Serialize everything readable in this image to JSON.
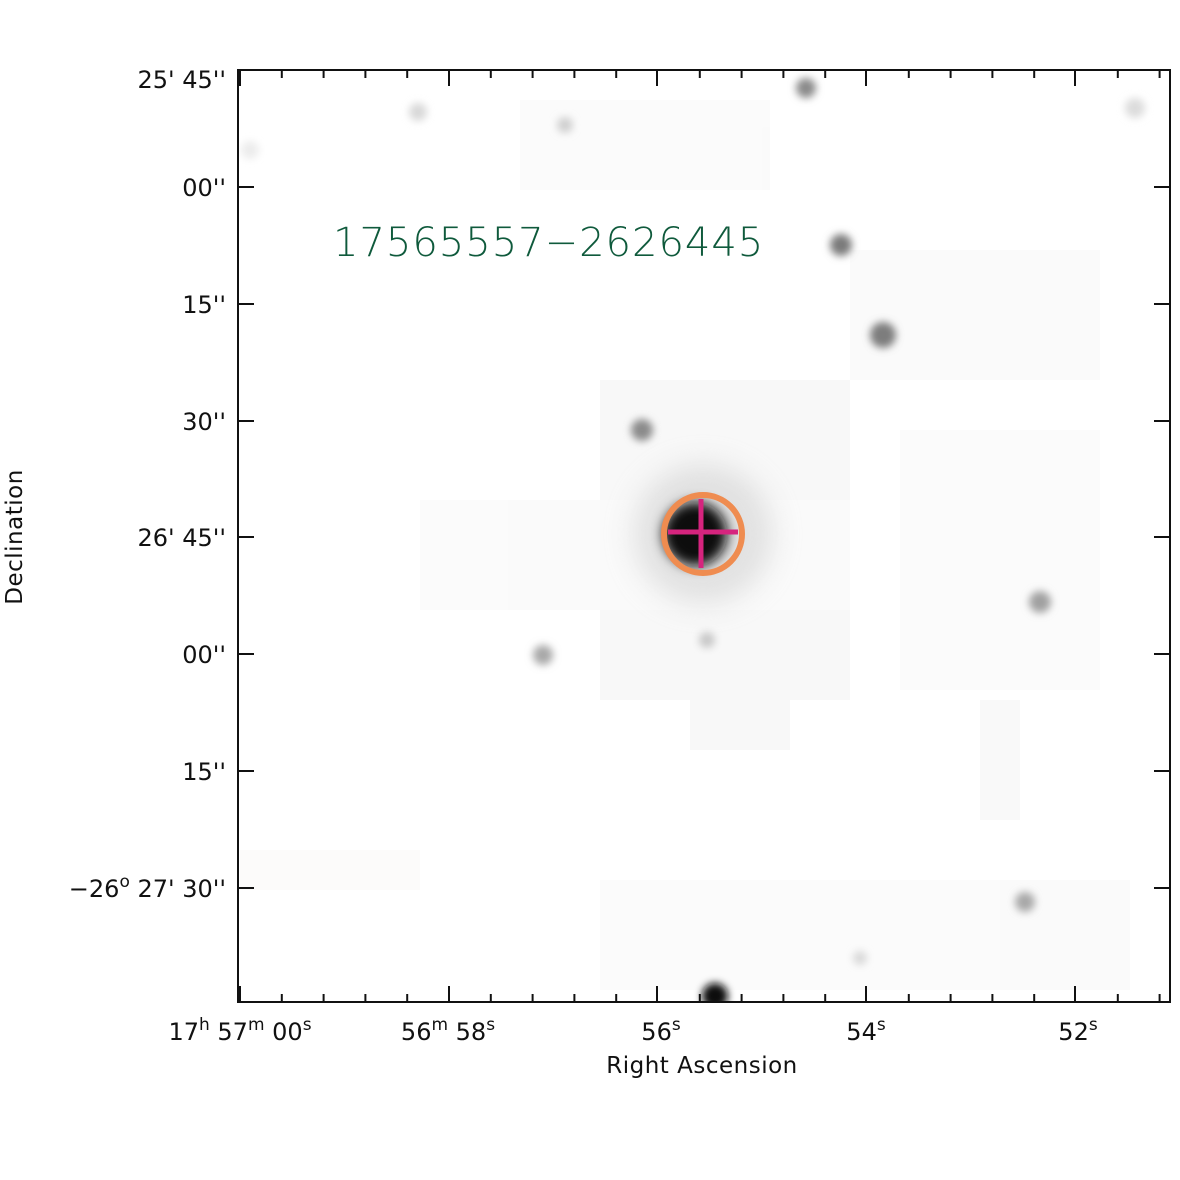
{
  "image": {
    "object_label": "17565557−2626445",
    "object_label_color": "#0f5a3c",
    "marker_circle_color": "#ef8c50",
    "marker_cross_color": "#d6247e",
    "axis_color": "#111111"
  },
  "axes": {
    "xlabel": "Right Ascension",
    "ylabel": "Declination",
    "y_ticks": [
      {
        "parts": [
          {
            "t": "25' 45''"
          }
        ]
      },
      {
        "parts": [
          {
            "t": "00''"
          }
        ]
      },
      {
        "parts": [
          {
            "t": "15''"
          }
        ]
      },
      {
        "parts": [
          {
            "t": "30''"
          }
        ]
      },
      {
        "parts": [
          {
            "t": "26' 45''"
          }
        ]
      },
      {
        "parts": [
          {
            "t": "00''"
          }
        ]
      },
      {
        "parts": [
          {
            "t": "15''"
          }
        ]
      },
      {
        "parts": [
          {
            "t": "−26"
          },
          {
            "t": "o",
            "sup": true
          },
          {
            "t": " 27' 30''"
          }
        ]
      }
    ],
    "x_ticks": [
      {
        "parts": [
          {
            "t": "17"
          },
          {
            "t": "h",
            "sup": true
          },
          {
            "t": " 57"
          },
          {
            "t": "m",
            "sup": true
          },
          {
            "t": " 00"
          },
          {
            "t": "s",
            "sup": true
          }
        ]
      },
      {
        "parts": [
          {
            "t": "56"
          },
          {
            "t": "m",
            "sup": true
          },
          {
            "t": " 58"
          },
          {
            "t": "s",
            "sup": true
          }
        ]
      },
      {
        "parts": [
          {
            "t": "56"
          },
          {
            "t": "s",
            "sup": true
          }
        ]
      },
      {
        "parts": [
          {
            "t": "54"
          },
          {
            "t": "s",
            "sup": true
          }
        ]
      },
      {
        "parts": [
          {
            "t": "52"
          },
          {
            "t": "s",
            "sup": true
          }
        ]
      }
    ]
  }
}
